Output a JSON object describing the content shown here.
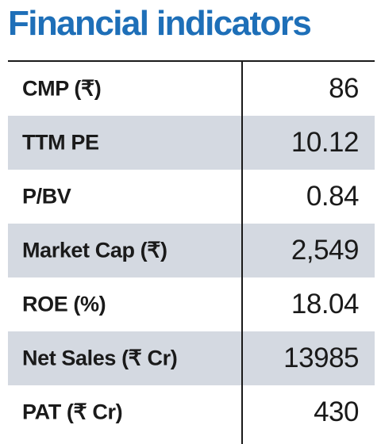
{
  "title": "Financial indicators",
  "colors": {
    "title": "#1e6fb8",
    "shaded_row": "#d4d9e1",
    "text": "#1a1a1a"
  },
  "rows": [
    {
      "label": "CMP (₹)",
      "value": "86"
    },
    {
      "label": "TTM PE",
      "value": "10.12"
    },
    {
      "label": "P/BV",
      "value": "0.84"
    },
    {
      "label": "Market Cap (₹)",
      "value": "2,549"
    },
    {
      "label": "ROE (%)",
      "value": "18.04"
    },
    {
      "label": "Net Sales (₹ Cr)",
      "value": "13985"
    },
    {
      "label": "PAT (₹ Cr)",
      "value": "430"
    }
  ]
}
